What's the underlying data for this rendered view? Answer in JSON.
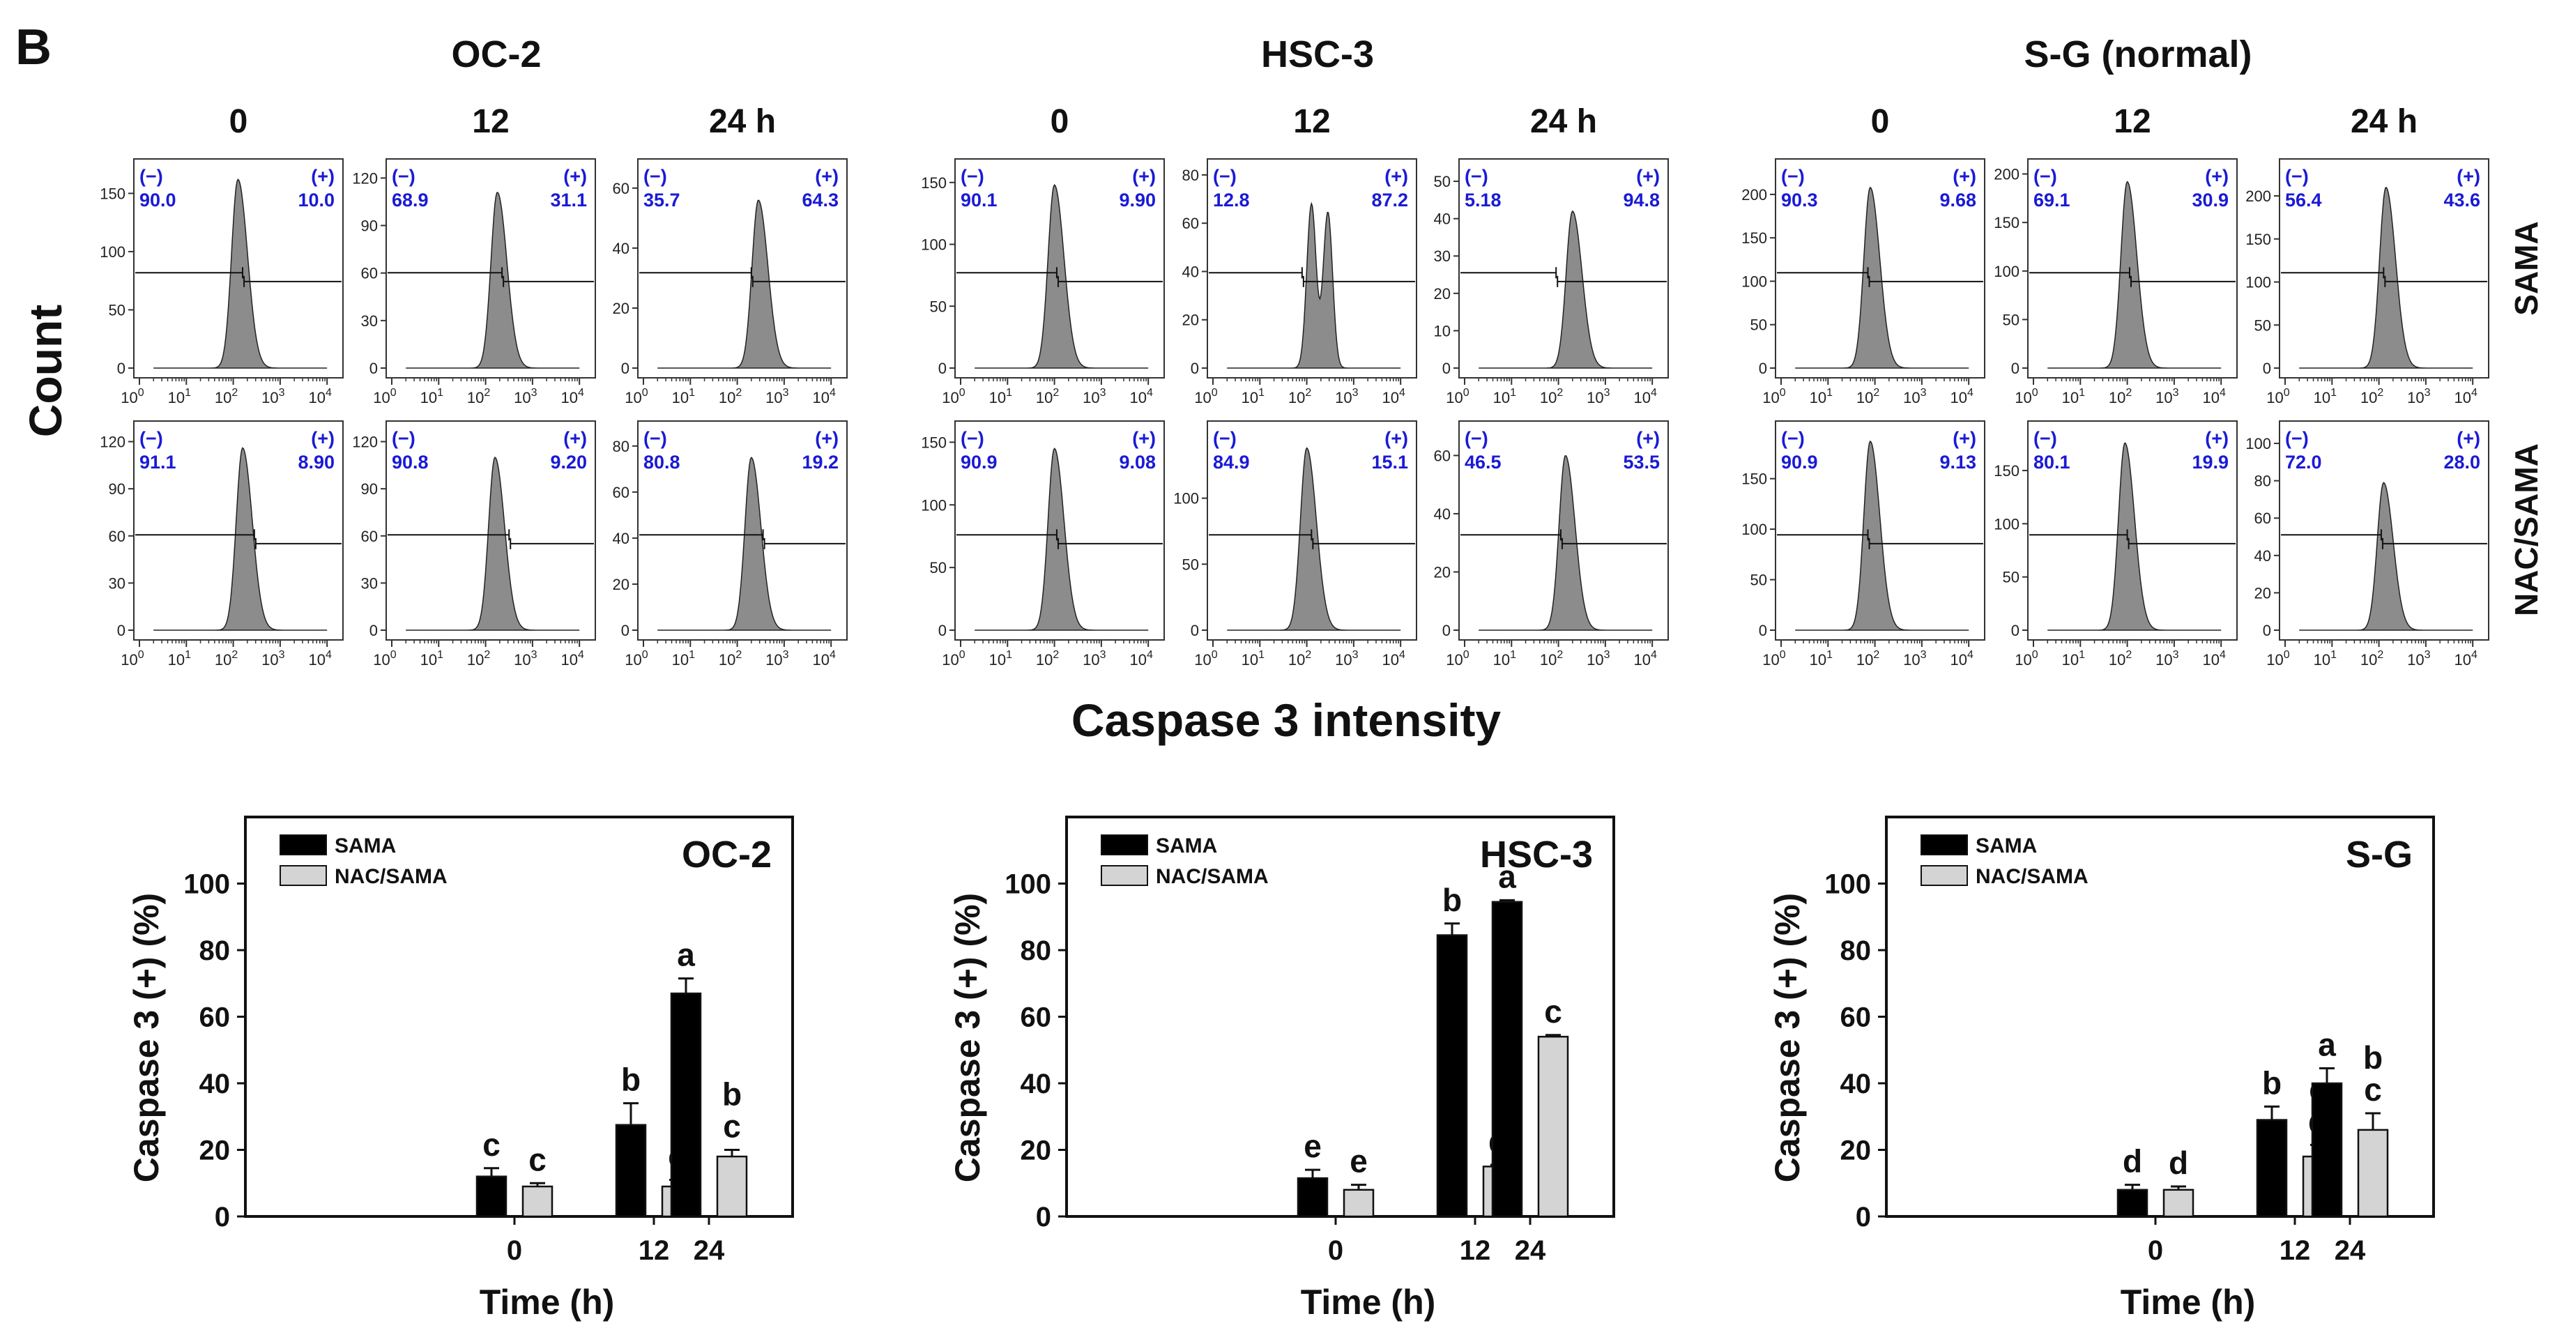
{
  "panel_label": "B",
  "count_label": "Count",
  "x_label": "Caspase 3 intensity",
  "row_labels": [
    "SAMA",
    "NAC/SAMA"
  ],
  "neg_label": "(−)",
  "pos_label": "(+)",
  "time_labels": [
    "0",
    "12",
    "24 h"
  ],
  "decade_ticks": [
    "10",
    "10",
    "10",
    "10",
    "10"
  ],
  "decade_exps": [
    "0",
    "1",
    "2",
    "3",
    "4"
  ],
  "colors": {
    "percent_text": "#1a1ad6",
    "hist_fill": "#8c8c8c",
    "bar_sama": "#000000",
    "bar_nac": "#d4d4d4"
  },
  "cell_lines": [
    {
      "name": "OC-2",
      "panels": [
        {
          "row": "SAMA",
          "time": "0",
          "neg": "90.0",
          "pos": "10.0",
          "yticks": [
            "0",
            "50",
            "100",
            "150"
          ],
          "ymax": 170,
          "peak_log": 2.1,
          "peak_y": 162,
          "gate_log": 2.2
        },
        {
          "row": "SAMA",
          "time": "12",
          "neg": "68.9",
          "pos": "31.1",
          "yticks": [
            "0",
            "30",
            "60",
            "90",
            "120"
          ],
          "ymax": 125,
          "peak_log": 2.25,
          "peak_y": 111,
          "gate_log": 2.35
        },
        {
          "row": "SAMA",
          "time": "24 h",
          "neg": "35.7",
          "pos": "64.3",
          "yticks": [
            "0",
            "20",
            "40",
            "60"
          ],
          "ymax": 66,
          "peak_log": 2.45,
          "peak_y": 56,
          "gate_log": 2.3
        },
        {
          "row": "NAC/SAMA",
          "time": "0",
          "neg": "91.1",
          "pos": "8.90",
          "yticks": [
            "0",
            "30",
            "60",
            "90",
            "120"
          ],
          "ymax": 126,
          "peak_log": 2.2,
          "peak_y": 116,
          "gate_log": 2.45
        },
        {
          "row": "NAC/SAMA",
          "time": "12",
          "neg": "90.8",
          "pos": "9.20",
          "yticks": [
            "0",
            "30",
            "60",
            "90",
            "120"
          ],
          "ymax": 126,
          "peak_log": 2.2,
          "peak_y": 110,
          "gate_log": 2.5
        },
        {
          "row": "NAC/SAMA",
          "time": "24 h",
          "neg": "80.8",
          "pos": "19.2",
          "yticks": [
            "0",
            "20",
            "40",
            "60",
            "80"
          ],
          "ymax": 86,
          "peak_log": 2.3,
          "peak_y": 75,
          "gate_log": 2.55
        }
      ]
    },
    {
      "name": "HSC-3",
      "panels": [
        {
          "row": "SAMA",
          "time": "0",
          "neg": "90.1",
          "pos": "9.90",
          "yticks": [
            "0",
            "50",
            "100",
            "150"
          ],
          "ymax": 160,
          "peak_log": 2.0,
          "peak_y": 148,
          "gate_log": 2.05
        },
        {
          "row": "SAMA",
          "time": "12",
          "neg": "12.8",
          "pos": "87.2",
          "yticks": [
            "0",
            "20",
            "40",
            "60",
            "80"
          ],
          "ymax": 82,
          "peak_log": 2.2,
          "peak_y": 68,
          "gate_log": 1.9
        },
        {
          "row": "SAMA",
          "time": "24 h",
          "neg": "5.18",
          "pos": "94.8",
          "yticks": [
            "0",
            "10",
            "20",
            "30",
            "40",
            "50"
          ],
          "ymax": 53,
          "peak_log": 2.3,
          "peak_y": 42,
          "gate_log": 1.95
        },
        {
          "row": "NAC/SAMA",
          "time": "0",
          "neg": "90.9",
          "pos": "9.08",
          "yticks": [
            "0",
            "50",
            "100",
            "150"
          ],
          "ymax": 158,
          "peak_log": 2.0,
          "peak_y": 145,
          "gate_log": 2.05
        },
        {
          "row": "NAC/SAMA",
          "time": "12",
          "neg": "84.9",
          "pos": "15.1",
          "yticks": [
            "0",
            "50",
            "100"
          ],
          "ymax": 150,
          "peak_log": 2.0,
          "peak_y": 138,
          "gate_log": 2.1
        },
        {
          "row": "NAC/SAMA",
          "time": "24 h",
          "neg": "46.5",
          "pos": "53.5",
          "yticks": [
            "0",
            "20",
            "40",
            "60"
          ],
          "ymax": 68,
          "peak_log": 2.15,
          "peak_y": 60,
          "gate_log": 2.05
        }
      ]
    },
    {
      "name": "S-G (normal)",
      "panels": [
        {
          "row": "SAMA",
          "time": "0",
          "neg": "90.3",
          "pos": "9.68",
          "yticks": [
            "0",
            "50",
            "100",
            "150",
            "200"
          ],
          "ymax": 228,
          "peak_log": 1.9,
          "peak_y": 208,
          "gate_log": 1.85
        },
        {
          "row": "SAMA",
          "time": "12",
          "neg": "69.1",
          "pos": "30.9",
          "yticks": [
            "0",
            "50",
            "100",
            "150",
            "200"
          ],
          "ymax": 204,
          "peak_log": 2.0,
          "peak_y": 192,
          "gate_log": 2.05
        },
        {
          "row": "SAMA",
          "time": "24 h",
          "neg": "56.4",
          "pos": "43.6",
          "yticks": [
            "0",
            "50",
            "100",
            "150",
            "200"
          ],
          "ymax": 230,
          "peak_log": 2.15,
          "peak_y": 210,
          "gate_log": 2.1
        },
        {
          "row": "NAC/SAMA",
          "time": "0",
          "neg": "90.9",
          "pos": "9.13",
          "yticks": [
            "0",
            "50",
            "100",
            "150"
          ],
          "ymax": 196,
          "peak_log": 1.9,
          "peak_y": 187,
          "gate_log": 1.85
        },
        {
          "row": "NAC/SAMA",
          "time": "12",
          "neg": "80.1",
          "pos": "19.9",
          "yticks": [
            "0",
            "50",
            "100",
            "150"
          ],
          "ymax": 186,
          "peak_log": 1.95,
          "peak_y": 176,
          "gate_log": 2.0
        },
        {
          "row": "NAC/SAMA",
          "time": "24 h",
          "neg": "72.0",
          "pos": "28.0",
          "yticks": [
            "0",
            "20",
            "40",
            "60",
            "80",
            "100"
          ],
          "ymax": 106,
          "peak_log": 2.1,
          "peak_y": 79,
          "gate_log": 2.05
        }
      ]
    }
  ],
  "chart_data": [
    {
      "type": "bar",
      "title": "OC-2",
      "xlabel": "Time (h)",
      "ylabel": "Caspase 3 (+) (%)",
      "categories": [
        "0",
        "12",
        "24"
      ],
      "ylim": [
        0,
        120
      ],
      "yticks": [
        "0",
        "20",
        "40",
        "60",
        "80",
        "100"
      ],
      "legend": "top-left",
      "series": [
        {
          "name": "SAMA",
          "values": [
            12,
            27.5,
            67
          ],
          "errors": [
            2.5,
            6.5,
            4.5
          ],
          "letters": [
            "c",
            "b",
            "a"
          ]
        },
        {
          "name": "NAC/SAMA",
          "values": [
            9,
            9,
            18
          ],
          "errors": [
            1,
            2,
            2
          ],
          "letters": [
            "c",
            "c",
            "b\nc"
          ]
        }
      ]
    },
    {
      "type": "bar",
      "title": "HSC-3",
      "xlabel": "Time (h)",
      "ylabel": "Caspase 3 (+) (%)",
      "categories": [
        "0",
        "12",
        "24"
      ],
      "ylim": [
        0,
        120
      ],
      "yticks": [
        "0",
        "20",
        "40",
        "60",
        "80",
        "100"
      ],
      "legend": "top-left",
      "series": [
        {
          "name": "SAMA",
          "values": [
            11.5,
            84.5,
            94.5
          ],
          "errors": [
            2.5,
            3.5,
            0.5
          ],
          "letters": [
            "e",
            "b",
            "a"
          ]
        },
        {
          "name": "NAC/SAMA",
          "values": [
            8,
            15,
            54
          ],
          "errors": [
            1.5,
            0.5,
            0.5
          ],
          "letters": [
            "e",
            "d",
            "c"
          ]
        }
      ]
    },
    {
      "type": "bar",
      "title": "S-G",
      "xlabel": "Time (h)",
      "ylabel": "Caspase 3 (+) (%)",
      "categories": [
        "0",
        "12",
        "24"
      ],
      "ylim": [
        0,
        120
      ],
      "yticks": [
        "0",
        "20",
        "40",
        "60",
        "80",
        "100"
      ],
      "legend": "top-left",
      "series": [
        {
          "name": "SAMA",
          "values": [
            8,
            29,
            40
          ],
          "errors": [
            1.5,
            4,
            4.5
          ],
          "letters": [
            "d",
            "b",
            "a"
          ]
        },
        {
          "name": "NAC/SAMA",
          "values": [
            8,
            18,
            26
          ],
          "errors": [
            1,
            3.5,
            5
          ],
          "letters": [
            "d",
            "c\nd",
            "b\nc"
          ]
        }
      ]
    }
  ]
}
